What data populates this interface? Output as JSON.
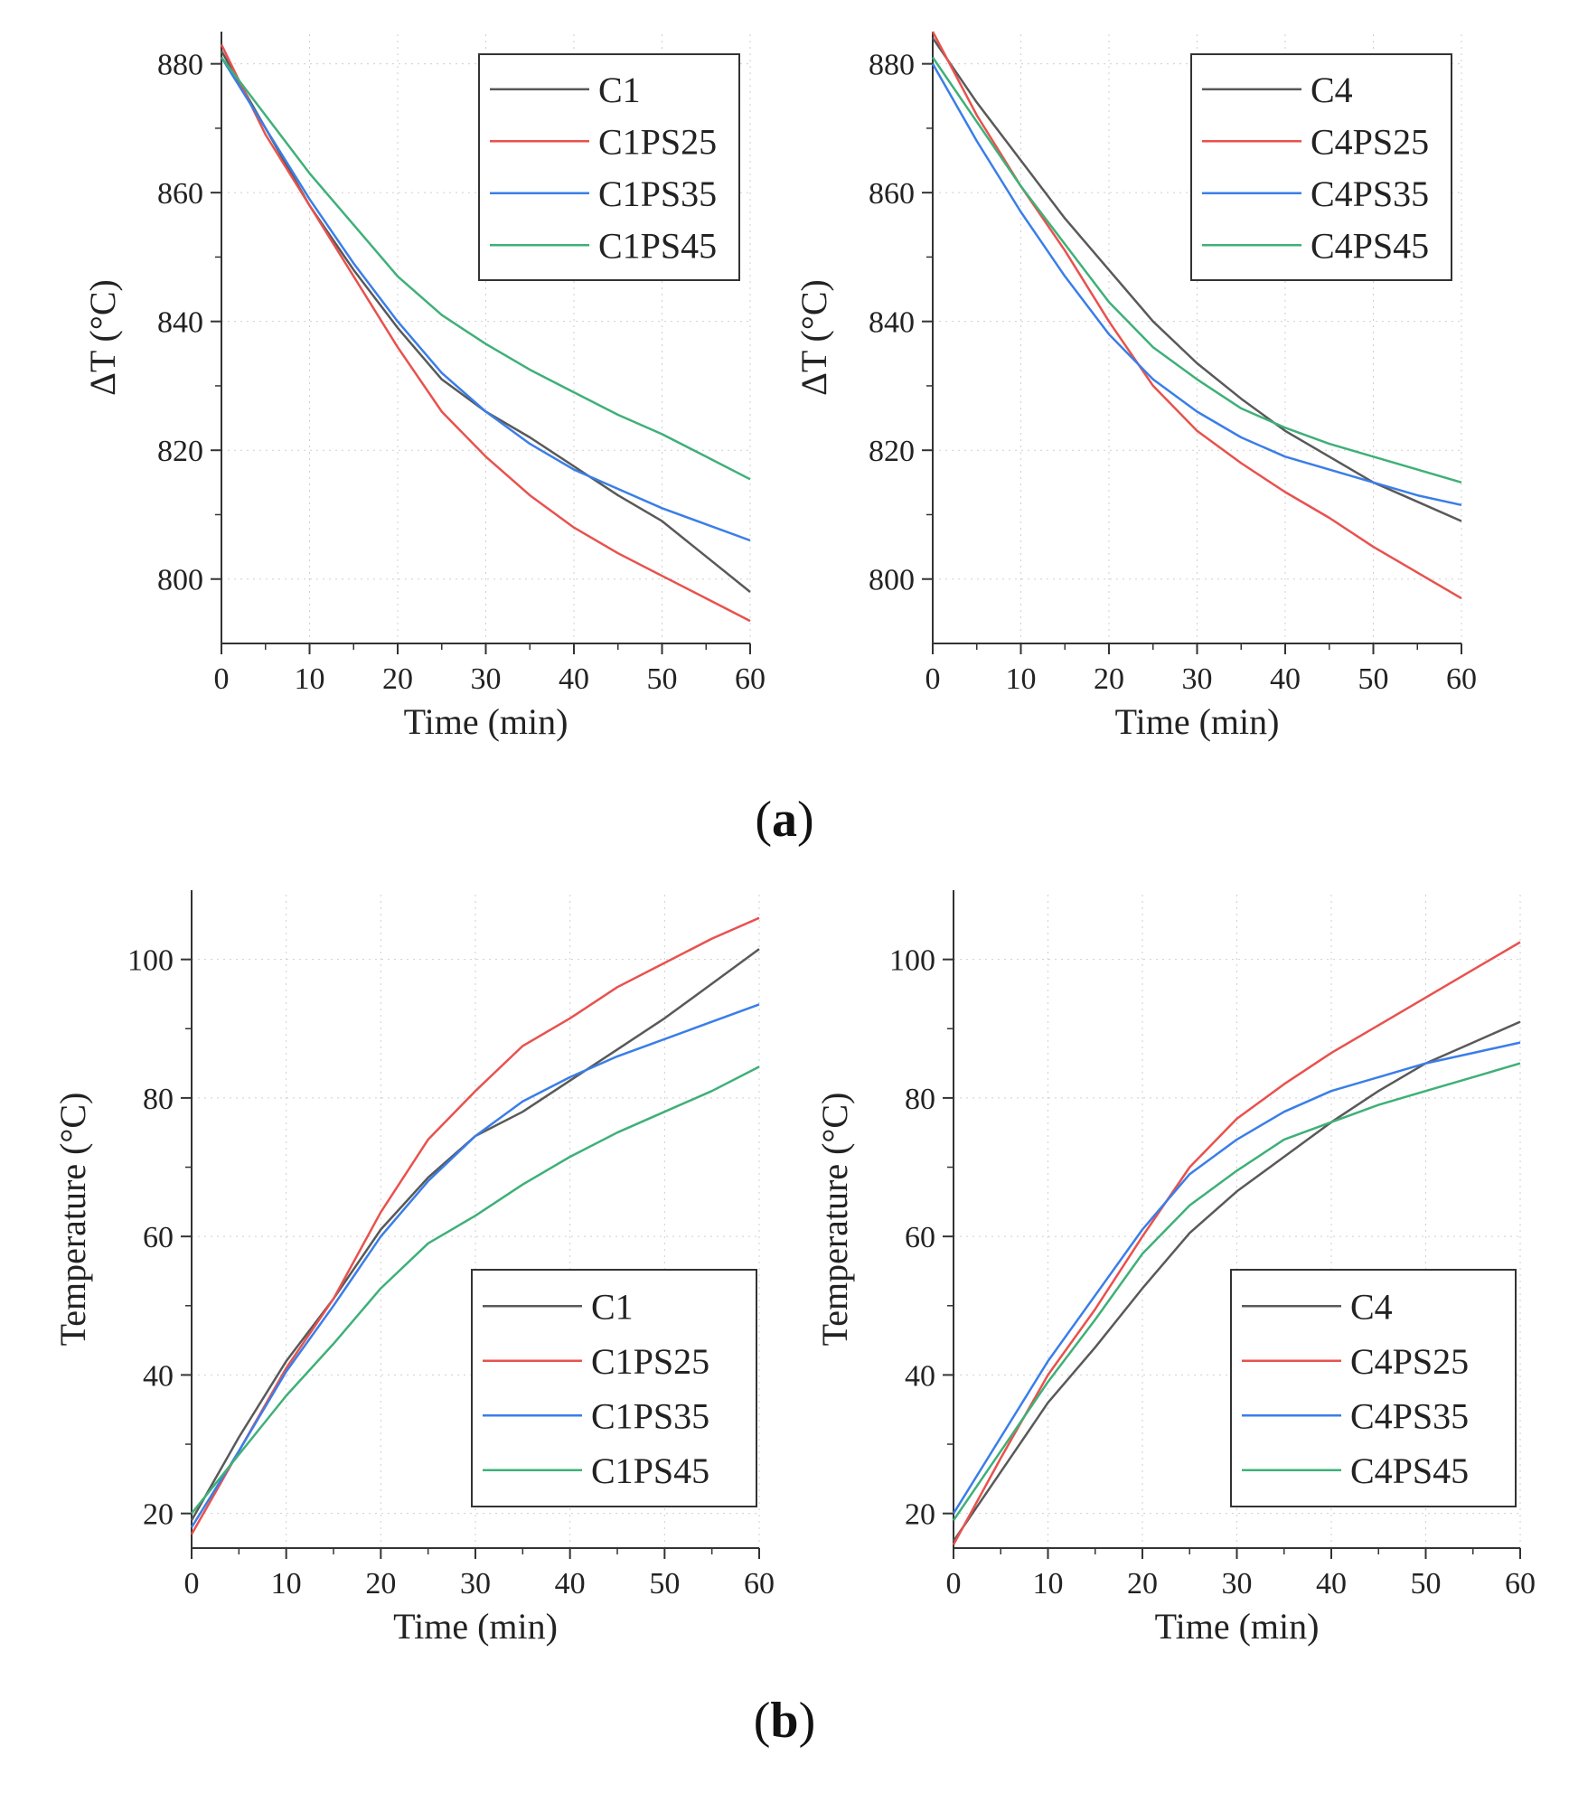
{
  "figure": {
    "panel_labels": [
      {
        "open": "(",
        "letter": "a",
        "close": ")"
      },
      {
        "open": "(",
        "letter": "b",
        "close": ")"
      }
    ]
  },
  "chart_data": [
    {
      "type": "line",
      "panel": "a",
      "title": "",
      "xlabel": "Time (min)",
      "ylabel": "ΔT (°C)",
      "xlim": [
        0,
        60
      ],
      "ylim": [
        790,
        885
      ],
      "xticks": [
        0,
        10,
        20,
        30,
        40,
        50,
        60
      ],
      "yticks": [
        800,
        820,
        840,
        860,
        880
      ],
      "legend_position": "top-right",
      "series": [
        {
          "name": "C1",
          "color": "#595959",
          "x": [
            0,
            5,
            10,
            15,
            20,
            25,
            30,
            35,
            40,
            45,
            50,
            55,
            60
          ],
          "y": [
            882,
            870,
            858,
            848,
            839,
            831,
            826,
            822,
            817.5,
            813,
            809,
            803.5,
            798
          ]
        },
        {
          "name": "C1PS25",
          "color": "#e8524e",
          "x": [
            0,
            5,
            10,
            15,
            20,
            25,
            30,
            35,
            40,
            45,
            50,
            55,
            60
          ],
          "y": [
            883,
            869,
            858,
            847,
            836,
            826,
            819,
            813,
            808,
            804,
            800.5,
            797,
            793.5
          ]
        },
        {
          "name": "C1PS35",
          "color": "#3a7ee8",
          "x": [
            0,
            5,
            10,
            15,
            20,
            25,
            30,
            35,
            40,
            45,
            50,
            55,
            60
          ],
          "y": [
            881,
            870,
            859,
            849,
            840,
            832,
            826,
            821,
            817,
            814,
            811,
            808.5,
            806
          ]
        },
        {
          "name": "C1PS45",
          "color": "#3fb078",
          "x": [
            0,
            5,
            10,
            15,
            20,
            25,
            30,
            35,
            40,
            45,
            50,
            55,
            60
          ],
          "y": [
            881,
            872,
            863,
            855,
            847,
            841,
            836.5,
            832.5,
            829,
            825.5,
            822.5,
            819,
            815.5
          ]
        }
      ]
    },
    {
      "type": "line",
      "panel": "a",
      "title": "",
      "xlabel": "Time (min)",
      "ylabel": "ΔT (°C)",
      "xlim": [
        0,
        60
      ],
      "ylim": [
        790,
        885
      ],
      "xticks": [
        0,
        10,
        20,
        30,
        40,
        50,
        60
      ],
      "yticks": [
        800,
        820,
        840,
        860,
        880
      ],
      "legend_position": "top-right",
      "series": [
        {
          "name": "C4",
          "color": "#595959",
          "x": [
            0,
            5,
            10,
            15,
            20,
            25,
            30,
            35,
            40,
            45,
            50,
            55,
            60
          ],
          "y": [
            884,
            874,
            865,
            856,
            848,
            840,
            833.5,
            828,
            823,
            819,
            815,
            812,
            809
          ]
        },
        {
          "name": "C4PS25",
          "color": "#e8524e",
          "x": [
            0,
            5,
            10,
            15,
            20,
            25,
            30,
            35,
            40,
            45,
            50,
            55,
            60
          ],
          "y": [
            885,
            872,
            861,
            851,
            840,
            830,
            823,
            818,
            813.5,
            809.5,
            805,
            801,
            797
          ]
        },
        {
          "name": "C4PS35",
          "color": "#3a7ee8",
          "x": [
            0,
            5,
            10,
            15,
            20,
            25,
            30,
            35,
            40,
            45,
            50,
            55,
            60
          ],
          "y": [
            880,
            868,
            857,
            847,
            838,
            831,
            826,
            822,
            819,
            817,
            815,
            813,
            811.5
          ]
        },
        {
          "name": "C4PS45",
          "color": "#3fb078",
          "x": [
            0,
            5,
            10,
            15,
            20,
            25,
            30,
            35,
            40,
            45,
            50,
            55,
            60
          ],
          "y": [
            881,
            871,
            861,
            852,
            843,
            836,
            831,
            826.5,
            823.5,
            821,
            819,
            817,
            815
          ]
        }
      ]
    },
    {
      "type": "line",
      "panel": "b",
      "title": "",
      "xlabel": "Time (min)",
      "ylabel": "Temperature (°C)",
      "xlim": [
        0,
        60
      ],
      "ylim": [
        15,
        110
      ],
      "xticks": [
        0,
        10,
        20,
        30,
        40,
        50,
        60
      ],
      "yticks": [
        20,
        40,
        60,
        80,
        100
      ],
      "legend_position": "bottom-right",
      "series": [
        {
          "name": "C1",
          "color": "#595959",
          "x": [
            0,
            5,
            10,
            15,
            20,
            25,
            30,
            35,
            40,
            45,
            50,
            55,
            60
          ],
          "y": [
            19,
            31,
            42,
            51,
            61,
            68.5,
            74.5,
            78,
            82.5,
            87,
            91.5,
            96.5,
            101.5
          ]
        },
        {
          "name": "C1PS25",
          "color": "#e8524e",
          "x": [
            0,
            5,
            10,
            15,
            20,
            25,
            30,
            35,
            40,
            45,
            50,
            55,
            60
          ],
          "y": [
            17,
            29,
            41,
            51,
            63.5,
            74,
            81,
            87.5,
            91.5,
            96,
            99.5,
            103,
            106
          ]
        },
        {
          "name": "C1PS35",
          "color": "#3a7ee8",
          "x": [
            0,
            5,
            10,
            15,
            20,
            25,
            30,
            35,
            40,
            45,
            50,
            55,
            60
          ],
          "y": [
            18,
            29,
            40.5,
            50,
            60,
            68,
            74.5,
            79.5,
            83,
            86,
            88.5,
            91,
            93.5
          ]
        },
        {
          "name": "C1PS45",
          "color": "#3fb078",
          "x": [
            0,
            5,
            10,
            15,
            20,
            25,
            30,
            35,
            40,
            45,
            50,
            55,
            60
          ],
          "y": [
            20,
            28.5,
            37,
            44.5,
            52.5,
            59,
            63,
            67.5,
            71.5,
            75,
            78,
            81,
            84.5
          ]
        }
      ]
    },
    {
      "type": "line",
      "panel": "b",
      "title": "",
      "xlabel": "Time (min)",
      "ylabel": "Temperature (°C)",
      "xlim": [
        0,
        60
      ],
      "ylim": [
        15,
        110
      ],
      "xticks": [
        0,
        10,
        20,
        30,
        40,
        50,
        60
      ],
      "yticks": [
        20,
        40,
        60,
        80,
        100
      ],
      "legend_position": "bottom-right",
      "series": [
        {
          "name": "C4",
          "color": "#595959",
          "x": [
            0,
            5,
            10,
            15,
            20,
            25,
            30,
            35,
            40,
            45,
            50,
            55,
            60
          ],
          "y": [
            16,
            26,
            36,
            44,
            52.5,
            60.5,
            66.5,
            71.5,
            76.5,
            81,
            85,
            88,
            91
          ]
        },
        {
          "name": "C4PS25",
          "color": "#e8524e",
          "x": [
            0,
            5,
            10,
            15,
            20,
            25,
            30,
            35,
            40,
            45,
            50,
            55,
            60
          ],
          "y": [
            15.5,
            28,
            40,
            49.5,
            60,
            70,
            77,
            82,
            86.5,
            90.5,
            94.5,
            98.5,
            102.5
          ]
        },
        {
          "name": "C4PS35",
          "color": "#3a7ee8",
          "x": [
            0,
            5,
            10,
            15,
            20,
            25,
            30,
            35,
            40,
            45,
            50,
            55,
            60
          ],
          "y": [
            20,
            31,
            42,
            51.5,
            61,
            69,
            74,
            78,
            81,
            83,
            85,
            86.5,
            88
          ]
        },
        {
          "name": "C4PS45",
          "color": "#3fb078",
          "x": [
            0,
            5,
            10,
            15,
            20,
            25,
            30,
            35,
            40,
            45,
            50,
            55,
            60
          ],
          "y": [
            19,
            29,
            39,
            48,
            57.5,
            64.5,
            69.5,
            74,
            76.5,
            79,
            81,
            83,
            85
          ]
        }
      ]
    }
  ]
}
